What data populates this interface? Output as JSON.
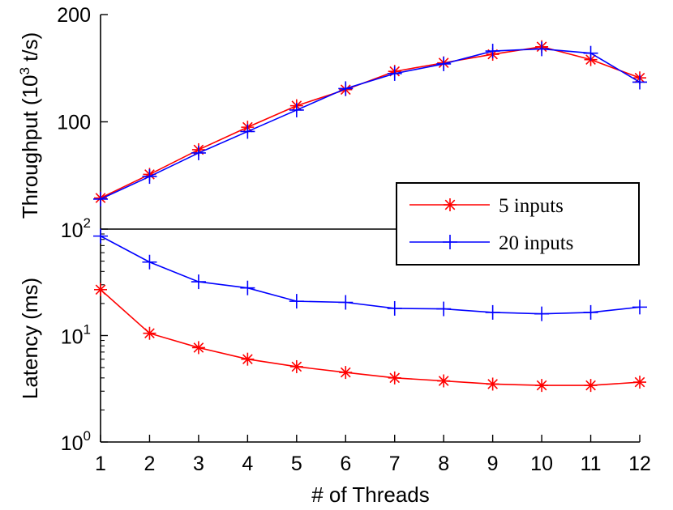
{
  "chart_data": [
    {
      "type": "line",
      "panel": "top",
      "ylabel": "Throughput (10",
      "ylabel_sup": "3",
      "ylabel_tail": " t/s)",
      "ylim": [
        0,
        200
      ],
      "yticks": [
        100,
        200
      ],
      "ytick_labels": [
        "100",
        "200"
      ],
      "x": [
        1,
        2,
        3,
        4,
        5,
        6,
        7,
        8,
        9,
        10,
        11,
        12
      ],
      "series": [
        {
          "name": "5 inputs",
          "color": "#ff0000",
          "marker": "asterisk",
          "values": [
            29,
            51,
            74,
            95,
            115,
            130,
            147,
            155,
            163,
            170,
            158,
            141
          ]
        },
        {
          "name": "20 inputs",
          "color": "#0000ff",
          "marker": "plus",
          "values": [
            28,
            49,
            71,
            91,
            111,
            131,
            145,
            154,
            166,
            168,
            164,
            137
          ]
        }
      ]
    },
    {
      "type": "line",
      "panel": "bottom",
      "yscale": "log",
      "ylabel": "Latency (ms)",
      "ylim": [
        1,
        100
      ],
      "yticks": [
        1,
        10,
        100
      ],
      "ytick_base": [
        "10",
        "10",
        "10"
      ],
      "ytick_exp": [
        "0",
        "1",
        "2"
      ],
      "xlabel": "# of Threads",
      "x": [
        1,
        2,
        3,
        4,
        5,
        6,
        7,
        8,
        9,
        10,
        11,
        12
      ],
      "xtick_labels": [
        "1",
        "2",
        "3",
        "4",
        "5",
        "6",
        "7",
        "8",
        "9",
        "10",
        "11",
        "12"
      ],
      "series": [
        {
          "name": "5 inputs",
          "color": "#ff0000",
          "marker": "asterisk",
          "values": [
            27,
            10.5,
            7.7,
            6.0,
            5.1,
            4.5,
            4.0,
            3.75,
            3.5,
            3.4,
            3.4,
            3.65
          ]
        },
        {
          "name": "20 inputs",
          "color": "#0000ff",
          "marker": "plus",
          "values": [
            86,
            49,
            32,
            28,
            21,
            20.5,
            18,
            17.8,
            16.5,
            16,
            16.5,
            18.5
          ]
        }
      ]
    }
  ],
  "legend": {
    "entries": [
      "5 inputs",
      "20 inputs"
    ],
    "colors": [
      "#ff0000",
      "#0000ff"
    ],
    "markers": [
      "asterisk",
      "plus"
    ],
    "location": "center-right"
  }
}
